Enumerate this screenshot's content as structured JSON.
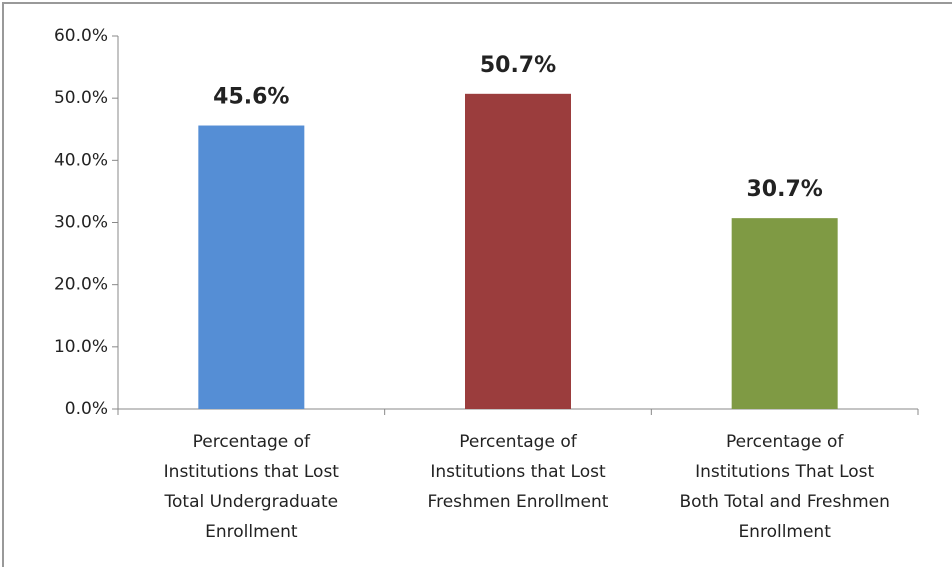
{
  "chart_data": {
    "type": "bar",
    "categories": [
      "Percentage of\nInstitutions that Lost\nTotal Undergraduate\nEnrollment",
      "Percentage of\nInstitutions that Lost\nFreshmen Enrollment",
      "Percentage of\nInstitutions That Lost\nBoth Total and Freshmen\nEnrollment"
    ],
    "values": [
      45.6,
      50.7,
      30.7
    ],
    "value_labels": [
      "45.6%",
      "50.7%",
      "30.7%"
    ],
    "colors": [
      "#558ed5",
      "#9b3d3d",
      "#7f9a44"
    ],
    "ylim": [
      0,
      60
    ],
    "yticks": [
      {
        "value": 0,
        "label": "0.0%"
      },
      {
        "value": 10,
        "label": "10.0%"
      },
      {
        "value": 20,
        "label": "20.0%"
      },
      {
        "value": 30,
        "label": "30.0%"
      },
      {
        "value": 40,
        "label": "40.0%"
      },
      {
        "value": 50,
        "label": "50.0%"
      },
      {
        "value": 60,
        "label": "60.0%"
      }
    ],
    "grid": false
  }
}
